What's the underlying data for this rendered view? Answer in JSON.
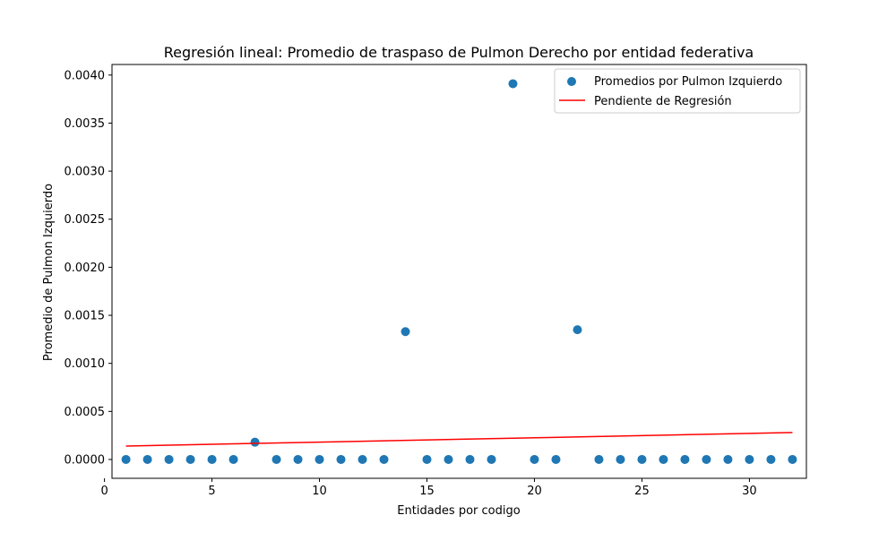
{
  "chart_data": {
    "type": "scatter",
    "title": "Regresión lineal: Promedio de traspaso de Pulmon Derecho por entidad federativa",
    "xlabel": "Entidades por codigo",
    "ylabel": "Promedio de Pulmon Izquierdo",
    "xlim": [
      0.35,
      32.65
    ],
    "ylim": [
      -0.000196,
      0.00411
    ],
    "x_ticks": [
      0,
      5,
      10,
      15,
      20,
      25,
      30
    ],
    "x_tick_labels": [
      "0",
      "5",
      "10",
      "15",
      "20",
      "25",
      "30"
    ],
    "y_ticks": [
      0.0,
      0.0005,
      0.001,
      0.0015,
      0.002,
      0.0025,
      0.003,
      0.0035,
      0.004
    ],
    "y_tick_labels": [
      "0.0000",
      "0.0005",
      "0.0010",
      "0.0015",
      "0.0020",
      "0.0025",
      "0.0030",
      "0.0035",
      "0.0040"
    ],
    "grid": false,
    "legend_position": "top-right",
    "series": [
      {
        "name": "Promedios por Pulmon Izquierdo",
        "kind": "scatter",
        "color": "#1f77b4",
        "x": [
          1,
          2,
          3,
          4,
          5,
          6,
          7,
          8,
          9,
          10,
          11,
          12,
          13,
          14,
          15,
          16,
          17,
          18,
          19,
          20,
          21,
          22,
          23,
          24,
          25,
          26,
          27,
          28,
          29,
          30,
          31,
          32
        ],
        "y": [
          0,
          0,
          0,
          0,
          0,
          0,
          0.00018,
          0,
          0,
          0,
          0,
          0,
          0,
          0.00133,
          0,
          0,
          0,
          0,
          0.00391,
          0,
          0,
          0.00135,
          0,
          0,
          0,
          0,
          0,
          0,
          0,
          0,
          0,
          0
        ]
      },
      {
        "name": "Pendiente de Regresión",
        "kind": "line",
        "color": "#ff0000",
        "x": [
          1,
          32
        ],
        "y": [
          0.00014,
          0.00028
        ]
      }
    ]
  }
}
